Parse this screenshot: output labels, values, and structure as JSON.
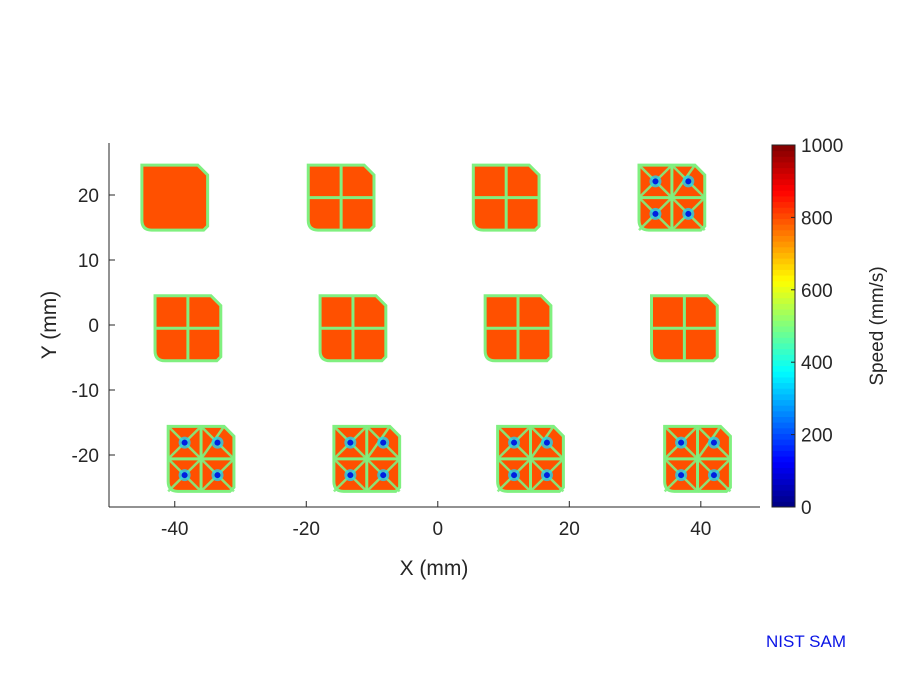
{
  "chart_data": {
    "type": "heatmap",
    "title": "",
    "xlabel": "X (mm)",
    "ylabel": "Y (mm)",
    "xlim": [
      -50,
      49
    ],
    "ylim": [
      -28,
      28
    ],
    "xticks": [
      -40,
      -20,
      0,
      20,
      40
    ],
    "yticks": [
      -20,
      -10,
      0,
      10,
      20
    ],
    "grid": false,
    "colorbar": {
      "label": "Speed (mm/s)",
      "range": [
        0,
        1000
      ],
      "ticks": [
        0,
        200,
        400,
        600,
        800,
        1000
      ],
      "colormap": "jet"
    },
    "colors": {
      "fill": "#ff5000",
      "contour": "#80f080",
      "slow": "#0020e0",
      "mid": "#20d0f0"
    },
    "parts": [
      {
        "x": -40,
        "y": 19.6,
        "pattern": "solid"
      },
      {
        "x": -14.7,
        "y": 19.6,
        "pattern": "cross"
      },
      {
        "x": 10.4,
        "y": 19.6,
        "pattern": "cross"
      },
      {
        "x": 35.6,
        "y": 19.6,
        "pattern": "diagonal"
      },
      {
        "x": -38,
        "y": -0.5,
        "pattern": "cross"
      },
      {
        "x": -12.9,
        "y": -0.5,
        "pattern": "cross"
      },
      {
        "x": 12.2,
        "y": -0.5,
        "pattern": "cross"
      },
      {
        "x": 37.5,
        "y": -0.5,
        "pattern": "cross"
      },
      {
        "x": -36,
        "y": -20.6,
        "pattern": "diagonal"
      },
      {
        "x": -10.8,
        "y": -20.6,
        "pattern": "diagonal"
      },
      {
        "x": 14.1,
        "y": -20.6,
        "pattern": "diagonal"
      },
      {
        "x": 39.5,
        "y": -20.6,
        "pattern": "diagonal"
      }
    ],
    "part_size_mm": 10
  },
  "watermark": "NIST SAM"
}
